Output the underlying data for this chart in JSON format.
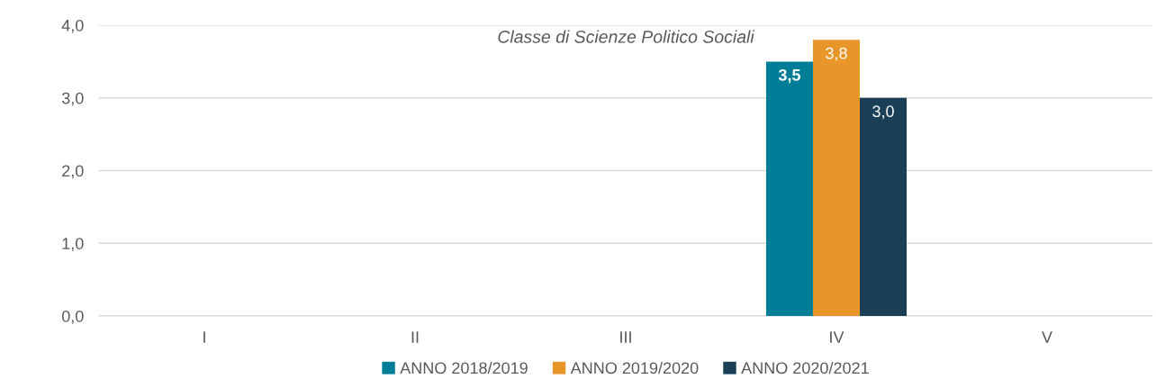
{
  "chart_data": {
    "type": "bar",
    "title": "Classe di Scienze Politico Sociali",
    "categories": [
      "I",
      "II",
      "III",
      "IV",
      "V"
    ],
    "series": [
      {
        "name": "ANNO 2018/2019",
        "color": "#007e97",
        "values": [
          null,
          null,
          null,
          3.5,
          null
        ],
        "value_labels": [
          null,
          null,
          null,
          "3,5",
          null
        ]
      },
      {
        "name": "ANNO 2019/2020",
        "color": "#e8962a",
        "values": [
          null,
          null,
          null,
          3.8,
          null
        ],
        "value_labels": [
          null,
          null,
          null,
          "3,8",
          null
        ]
      },
      {
        "name": "ANNO 2020/2021",
        "color": "#1b3f57",
        "values": [
          null,
          null,
          null,
          3.0,
          null
        ],
        "value_labels": [
          null,
          null,
          null,
          "3,0",
          null
        ]
      }
    ],
    "ylim": [
      0,
      4
    ],
    "yticks": [
      {
        "value": 0,
        "label": "0,0"
      },
      {
        "value": 1,
        "label": "1,0"
      },
      {
        "value": 2,
        "label": "2,0"
      },
      {
        "value": 3,
        "label": "3,0"
      },
      {
        "value": 4,
        "label": "4,0"
      }
    ],
    "grid": "y",
    "legend": "bottom"
  }
}
